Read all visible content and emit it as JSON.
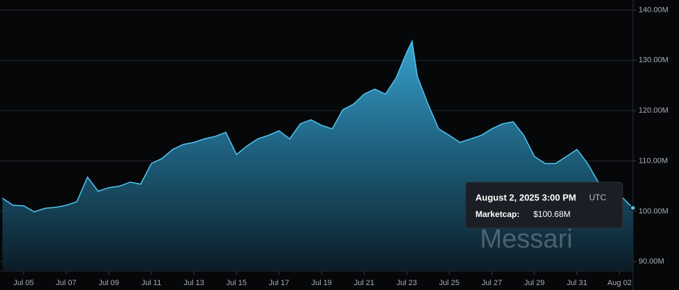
{
  "chart_data": {
    "type": "area",
    "x": [
      "2025-07-04T00:00",
      "2025-07-04T12:00",
      "2025-07-05T00:00",
      "2025-07-05T12:00",
      "2025-07-06T00:00",
      "2025-07-06T12:00",
      "2025-07-07T00:00",
      "2025-07-07T12:00",
      "2025-07-08T00:00",
      "2025-07-08T12:00",
      "2025-07-09T00:00",
      "2025-07-09T12:00",
      "2025-07-10T00:00",
      "2025-07-10T12:00",
      "2025-07-11T00:00",
      "2025-07-11T12:00",
      "2025-07-12T00:00",
      "2025-07-12T12:00",
      "2025-07-13T00:00",
      "2025-07-13T12:00",
      "2025-07-14T00:00",
      "2025-07-14T12:00",
      "2025-07-15T00:00",
      "2025-07-15T12:00",
      "2025-07-16T00:00",
      "2025-07-16T12:00",
      "2025-07-17T00:00",
      "2025-07-17T12:00",
      "2025-07-18T00:00",
      "2025-07-18T12:00",
      "2025-07-19T00:00",
      "2025-07-19T12:00",
      "2025-07-20T00:00",
      "2025-07-20T12:00",
      "2025-07-21T00:00",
      "2025-07-21T12:00",
      "2025-07-22T00:00",
      "2025-07-22T12:00",
      "2025-07-23T00:00",
      "2025-07-23T06:00",
      "2025-07-23T12:00",
      "2025-07-24T00:00",
      "2025-07-24T12:00",
      "2025-07-25T00:00",
      "2025-07-25T12:00",
      "2025-07-26T00:00",
      "2025-07-26T12:00",
      "2025-07-27T00:00",
      "2025-07-27T12:00",
      "2025-07-28T00:00",
      "2025-07-28T12:00",
      "2025-07-29T00:00",
      "2025-07-29T12:00",
      "2025-07-30T00:00",
      "2025-07-30T12:00",
      "2025-07-31T00:00",
      "2025-07-31T12:00",
      "2025-08-01T00:00",
      "2025-08-01T12:00",
      "2025-08-02T00:00",
      "2025-08-02T12:00",
      "2025-08-02T15:00"
    ],
    "series": [
      {
        "color": "#4cc0ef",
        "values": [
          102.6,
          101.2,
          101.1,
          99.9,
          100.6,
          100.8,
          101.2,
          101.9,
          106.8,
          104.0,
          104.7,
          105.0,
          105.8,
          105.4,
          109.5,
          110.5,
          112.3,
          113.3,
          113.7,
          114.4,
          114.9,
          115.7,
          111.3,
          113.0,
          114.4,
          115.1,
          116.0,
          114.4,
          117.4,
          118.2,
          117.1,
          116.4,
          120.2,
          121.3,
          123.3,
          124.3,
          123.3,
          126.5,
          131.6,
          133.8,
          126.8,
          121.3,
          116.4,
          115.1,
          113.7,
          114.4,
          115.1,
          116.4,
          117.4,
          117.8,
          115.1,
          110.9,
          109.5,
          109.5,
          110.9,
          112.3,
          109.5,
          105.8,
          105.0,
          103.3,
          101.2,
          100.68
        ]
      }
    ],
    "xlim": [
      "2025-07-03T21:20",
      "2025-08-02T15:10"
    ],
    "xticks": [
      {
        "value": "2025-07-05",
        "label": "Jul 05"
      },
      {
        "value": "2025-07-07",
        "label": "Jul 07"
      },
      {
        "value": "2025-07-09",
        "label": "Jul 09"
      },
      {
        "value": "2025-07-11",
        "label": "Jul 11"
      },
      {
        "value": "2025-07-13",
        "label": "Jul 13"
      },
      {
        "value": "2025-07-15",
        "label": "Jul 15"
      },
      {
        "value": "2025-07-17",
        "label": "Jul 17"
      },
      {
        "value": "2025-07-19",
        "label": "Jul 19"
      },
      {
        "value": "2025-07-21",
        "label": "Jul 21"
      },
      {
        "value": "2025-07-23",
        "label": "Jul 23"
      },
      {
        "value": "2025-07-25",
        "label": "Jul 25"
      },
      {
        "value": "2025-07-27",
        "label": "Jul 27"
      },
      {
        "value": "2025-07-29",
        "label": "Jul 29"
      },
      {
        "value": "2025-07-31",
        "label": "Jul 31"
      },
      {
        "value": "2025-08-02",
        "label": "Aug 02"
      }
    ],
    "ylim": [
      88.1,
      142
    ],
    "yticks": [
      {
        "value": 90,
        "label": "90.00M"
      },
      {
        "value": 100,
        "label": "100.00M"
      },
      {
        "value": 110,
        "label": "110.00M"
      },
      {
        "value": 120,
        "label": "120.00M"
      },
      {
        "value": 130,
        "label": "130.00M"
      },
      {
        "value": 140,
        "label": "140.00M"
      }
    ],
    "grid": true,
    "tooltip": {
      "date": "August 2, 2025 3:00 PM",
      "timezone": "UTC",
      "label": "Marketcap:",
      "value_label": "$100.68M"
    },
    "watermark": "Messari"
  }
}
